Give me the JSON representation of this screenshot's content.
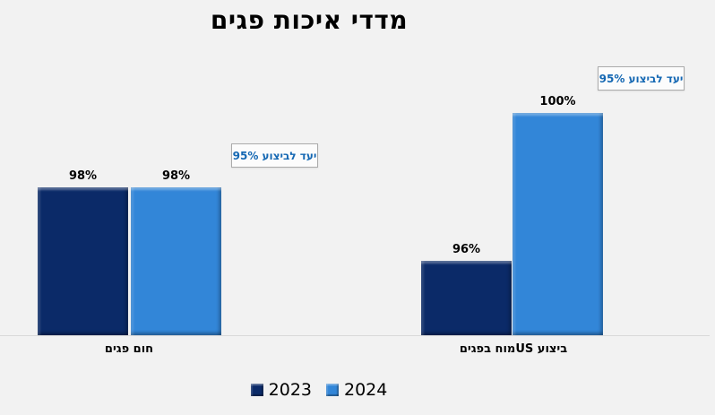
{
  "page": {
    "background_color": "#f2f2f2"
  },
  "chart_data": {
    "type": "bar",
    "title": "מדדי איכות פגים",
    "direction": "rtl",
    "categories": [
      "חום פגים",
      "ביצוע USמוח בפגים"
    ],
    "series": [
      {
        "name": "2023",
        "color": "#0b2a68",
        "values": [
          98,
          96
        ]
      },
      {
        "name": "2024",
        "color": "#3286d8",
        "values": [
          98,
          100
        ]
      }
    ],
    "data_labels": {
      "2023": [
        "98%",
        "96%"
      ],
      "2024": [
        "98%",
        "100%"
      ]
    },
    "value_suffix": "%",
    "ylim": [
      94,
      100
    ],
    "grid": false,
    "y_axis_visible": false,
    "legend_position": "bottom-center",
    "annotations": [
      {
        "label": "יעד לביצוע 95%",
        "value": 95,
        "category": "חום פגים"
      },
      {
        "label": "יעד לביצוע 95%",
        "value": 95,
        "category": "ביצוע USמוח בפגים"
      }
    ]
  },
  "styles": {
    "annotation_text_color": "#1568b3",
    "annotation_border_color": "#ababab",
    "annotation_background": "#fcfcfc",
    "axis_line_color": "#d9d9d9",
    "label_color": "#000000",
    "title_color": "#000000"
  }
}
